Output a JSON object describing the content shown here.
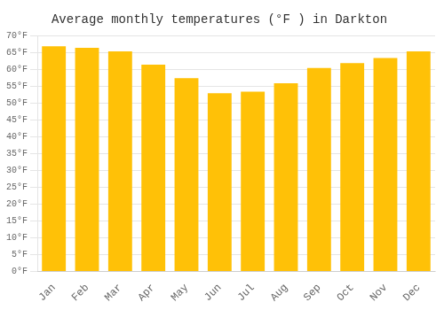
{
  "chart_data": {
    "type": "bar",
    "title": "Average monthly temperatures (°F ) in Darkton",
    "categories": [
      "Jan",
      "Feb",
      "Mar",
      "Apr",
      "May",
      "Jun",
      "Jul",
      "Aug",
      "Sep",
      "Oct",
      "Nov",
      "Dec"
    ],
    "values": [
      67,
      66.5,
      65.5,
      61.5,
      57.5,
      53,
      53.5,
      56,
      60.5,
      62,
      63.5,
      65.5
    ],
    "color": "#FFC107",
    "ylim": [
      0,
      70
    ],
    "yticks": [
      {
        "value": 0,
        "label": "0°F"
      },
      {
        "value": 5,
        "label": "5°F"
      },
      {
        "value": 10,
        "label": "10°F"
      },
      {
        "value": 15,
        "label": "15°F"
      },
      {
        "value": 20,
        "label": "20°F"
      },
      {
        "value": 25,
        "label": "25°F"
      },
      {
        "value": 30,
        "label": "30°F"
      },
      {
        "value": 35,
        "label": "35°F"
      },
      {
        "value": 40,
        "label": "40°F"
      },
      {
        "value": 45,
        "label": "45°F"
      },
      {
        "value": 50,
        "label": "50°F"
      },
      {
        "value": 55,
        "label": "55°F"
      },
      {
        "value": 60,
        "label": "60°F"
      },
      {
        "value": 65,
        "label": "65°F"
      },
      {
        "value": 70,
        "label": "70°F"
      }
    ],
    "grid": true
  }
}
